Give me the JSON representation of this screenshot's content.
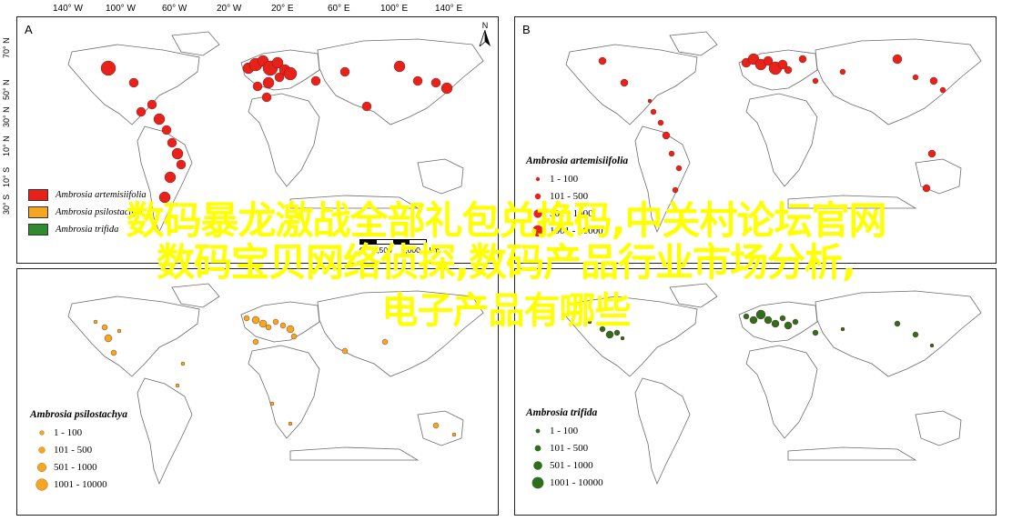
{
  "axis_ticks": {
    "longitude": [
      "140° W",
      "100° W",
      "60° W",
      "20° W",
      "20° E",
      "60° E",
      "100° E",
      "140° E"
    ],
    "latitude": [
      "70° N",
      "50° N",
      "30° N",
      "10° N",
      "10° S",
      "30° S"
    ],
    "north_label": "N"
  },
  "panels": {
    "A": {
      "letter": "A",
      "species_legend": [
        {
          "name": "Ambrosia artemisiifolia",
          "color": "#e8221a"
        },
        {
          "name": "Ambrosia psilostachya",
          "color": "#f5a623"
        },
        {
          "name": "Ambrosia trifida",
          "color": "#2e8b2e"
        }
      ],
      "scale": {
        "ticks": [
          "0",
          "2,500",
          "5,000"
        ],
        "unit": "km"
      }
    },
    "B": {
      "letter": "B",
      "legend_title": "Ambrosia artemisiifolia",
      "color": "#e8221a",
      "classes": [
        "1 - 100",
        "101 - 500",
        "501 - 1000",
        "1001 - 10000"
      ]
    },
    "C": {
      "legend_title": "Ambrosia psilostachya",
      "color": "#f5a623",
      "classes": [
        "1 - 100",
        "101 - 500",
        "501 - 1000",
        "1001 - 10000"
      ]
    },
    "D": {
      "legend_title": "Ambrosia trifida",
      "color": "#2e6e1e",
      "classes": [
        "1 - 100",
        "101 - 500",
        "501 - 1000",
        "1001 - 10000"
      ]
    }
  },
  "overlay_text": {
    "line1": "数码暴龙激战全部礼包兑换码,中关村论坛官网",
    "line2": "数码宝贝网络侦探,数码产品行业市场分析,",
    "line3": "电子产品有哪些"
  }
}
